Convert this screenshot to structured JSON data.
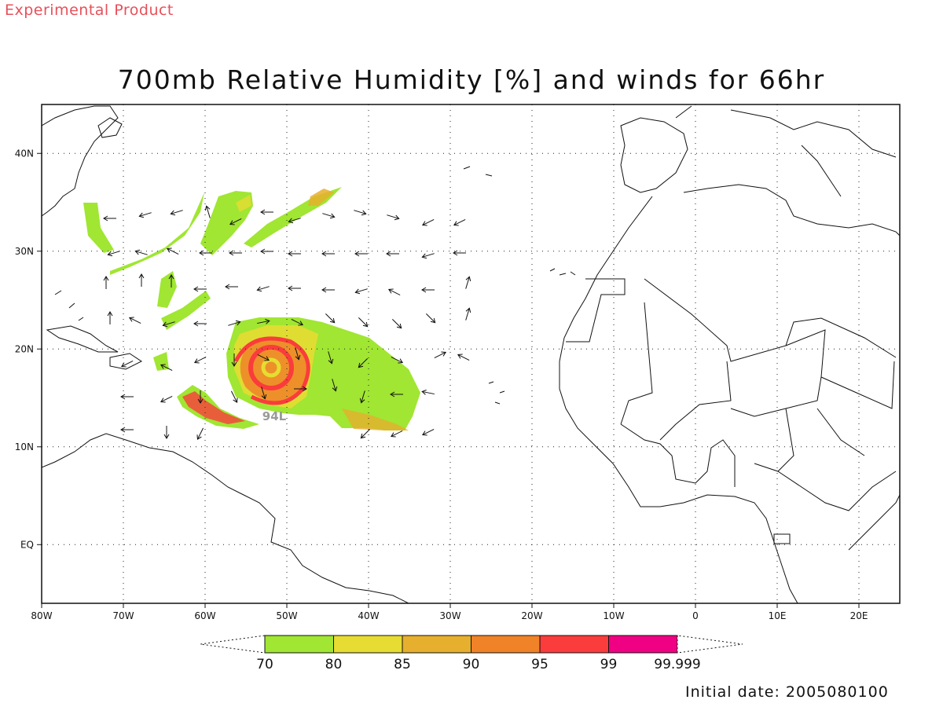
{
  "header": {
    "tag": "Experimental Product"
  },
  "title": "700mb Relative Humidity [%] and winds for 66hr",
  "footer": {
    "initial_date": "Initial date: 2005080100"
  },
  "map": {
    "lon_range": [
      -80,
      25
    ],
    "lat_range": [
      -6,
      45
    ],
    "x_ticks": [
      {
        "lon": -80,
        "label": "80W"
      },
      {
        "lon": -70,
        "label": "70W"
      },
      {
        "lon": -60,
        "label": "60W"
      },
      {
        "lon": -50,
        "label": "50W"
      },
      {
        "lon": -40,
        "label": "40W"
      },
      {
        "lon": -30,
        "label": "30W"
      },
      {
        "lon": -20,
        "label": "20W"
      },
      {
        "lon": -10,
        "label": "10W"
      },
      {
        "lon": 0,
        "label": "0"
      },
      {
        "lon": 10,
        "label": "10E"
      },
      {
        "lon": 20,
        "label": "20E"
      }
    ],
    "y_ticks": [
      {
        "lat": 40,
        "label": "40N"
      },
      {
        "lat": 30,
        "label": "30N"
      },
      {
        "lat": 20,
        "label": "20N"
      },
      {
        "lat": 10,
        "label": "10N"
      },
      {
        "lat": 0,
        "label": "EQ"
      }
    ],
    "grid": true,
    "storm_label": {
      "text": "94L",
      "lon": -53,
      "lat": 12.7
    }
  },
  "colorbar": {
    "levels": [
      "70",
      "80",
      "85",
      "90",
      "95",
      "99",
      "99.999"
    ],
    "colors": [
      "#a0e632",
      "#e6dc32",
      "#e6af2d",
      "#f08228",
      "#fa3c3c",
      "#f00082"
    ]
  },
  "palette": {
    "rh_70": "#a0e632",
    "rh_80": "#e6dc32",
    "rh_85": "#e6af2d",
    "rh_90": "#f08228",
    "rh_95": "#fa3c3c",
    "rh_99": "#f00082",
    "storm_label": "#9a9a9a",
    "tag": "#e8505a"
  }
}
